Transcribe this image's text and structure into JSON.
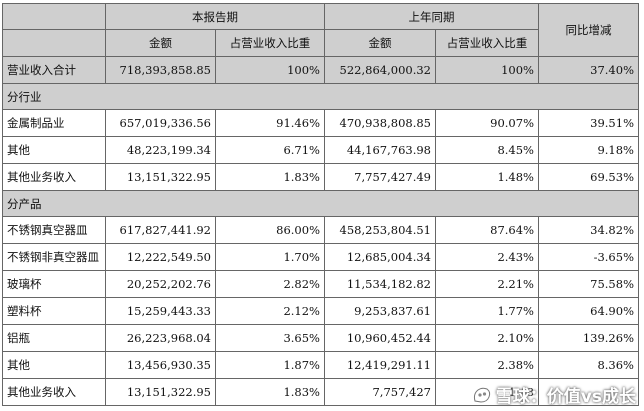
{
  "headers": {
    "current_period": "本报告期",
    "same_period_last_year": "上年同期",
    "yoy_change": "同比增减",
    "amount": "金额",
    "revenue_share": "占营业收入比重"
  },
  "total": {
    "label": "营业收入合计",
    "current_amount": "718,393,858.85",
    "current_share": "100%",
    "last_amount": "522,864,000.32",
    "last_share": "100%",
    "yoy": "37.40%"
  },
  "by_industry": {
    "title": "分行业",
    "rows": [
      {
        "label": "金属制品业",
        "current_amount": "657,019,336.56",
        "current_share": "91.46%",
        "last_amount": "470,938,808.85",
        "last_share": "90.07%",
        "yoy": "39.51%"
      },
      {
        "label": "其他",
        "current_amount": "48,223,199.34",
        "current_share": "6.71%",
        "last_amount": "44,167,763.98",
        "last_share": "8.45%",
        "yoy": "9.18%"
      },
      {
        "label": "其他业务收入",
        "current_amount": "13,151,322.95",
        "current_share": "1.83%",
        "last_amount": "7,757,427.49",
        "last_share": "1.48%",
        "yoy": "69.53%"
      }
    ]
  },
  "by_product": {
    "title": "分产品",
    "rows": [
      {
        "label": "不锈钢真空器皿",
        "current_amount": "617,827,441.92",
        "current_share": "86.00%",
        "last_amount": "458,253,804.51",
        "last_share": "87.64%",
        "yoy": "34.82%"
      },
      {
        "label": "不锈钢非真空器皿",
        "current_amount": "12,222,549.50",
        "current_share": "1.70%",
        "last_amount": "12,685,004.34",
        "last_share": "2.43%",
        "yoy": "-3.65%"
      },
      {
        "label": "玻璃杯",
        "current_amount": "20,252,202.76",
        "current_share": "2.82%",
        "last_amount": "11,534,182.82",
        "last_share": "2.21%",
        "yoy": "75.58%"
      },
      {
        "label": "塑料杯",
        "current_amount": "15,259,443.33",
        "current_share": "2.12%",
        "last_amount": "9,253,837.61",
        "last_share": "1.77%",
        "yoy": "64.90%"
      },
      {
        "label": "铝瓶",
        "current_amount": "26,223,968.04",
        "current_share": "3.65%",
        "last_amount": "10,960,452.44",
        "last_share": "2.10%",
        "yoy": "139.26%"
      },
      {
        "label": "其他",
        "current_amount": "13,456,930.35",
        "current_share": "1.87%",
        "last_amount": "12,419,291.11",
        "last_share": "2.38%",
        "yoy": "8.36%"
      },
      {
        "label": "其他业务收入",
        "current_amount": "13,151,322.95",
        "current_share": "1.83%",
        "last_amount": "7,757,427",
        "last_share": "1.48",
        "yoy": ""
      }
    ]
  },
  "watermark": {
    "text": "雪球：价值vs成长",
    "icon": "snowball-logo-icon"
  }
}
